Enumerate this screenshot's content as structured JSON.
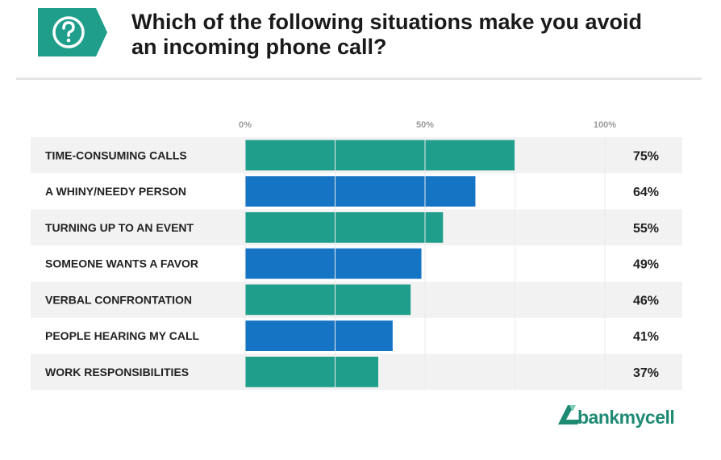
{
  "header": {
    "title_line1": "Which of the following situations make you avoid",
    "title_line2": "an incoming phone call?",
    "badge_icon": "question-icon",
    "badge_color": "#1e9e8b"
  },
  "colors": {
    "teal": "#1e9e8b",
    "blue": "#1574c4",
    "row_bg": "#f2f2f2"
  },
  "chart_data": {
    "type": "bar",
    "orientation": "horizontal",
    "title": "Which of the following situations make you avoid an incoming phone call?",
    "categories": [
      "TIME-CONSUMING CALLS",
      "A WHINY/NEEDY PERSON",
      "TURNING UP TO AN EVENT",
      "SOMEONE WANTS A FAVOR",
      "VERBAL CONFRONTATION",
      "PEOPLE HEARING MY CALL",
      "WORK RESPONSIBILITIES"
    ],
    "values": [
      75,
      64,
      55,
      49,
      46,
      41,
      37
    ],
    "value_labels": [
      "75%",
      "64%",
      "55%",
      "49%",
      "46%",
      "41%",
      "37%"
    ],
    "bar_colors": [
      "#1e9e8b",
      "#1574c4",
      "#1e9e8b",
      "#1574c4",
      "#1e9e8b",
      "#1574c4",
      "#1e9e8b"
    ],
    "xlim": [
      0,
      100
    ],
    "ticks": [
      0,
      50,
      100
    ],
    "tick_labels": [
      "0%",
      "50%",
      "100%"
    ],
    "grid": true,
    "legend": false
  },
  "logo": {
    "text": "bankmycell",
    "icon": "bankmycell-logo-icon"
  }
}
